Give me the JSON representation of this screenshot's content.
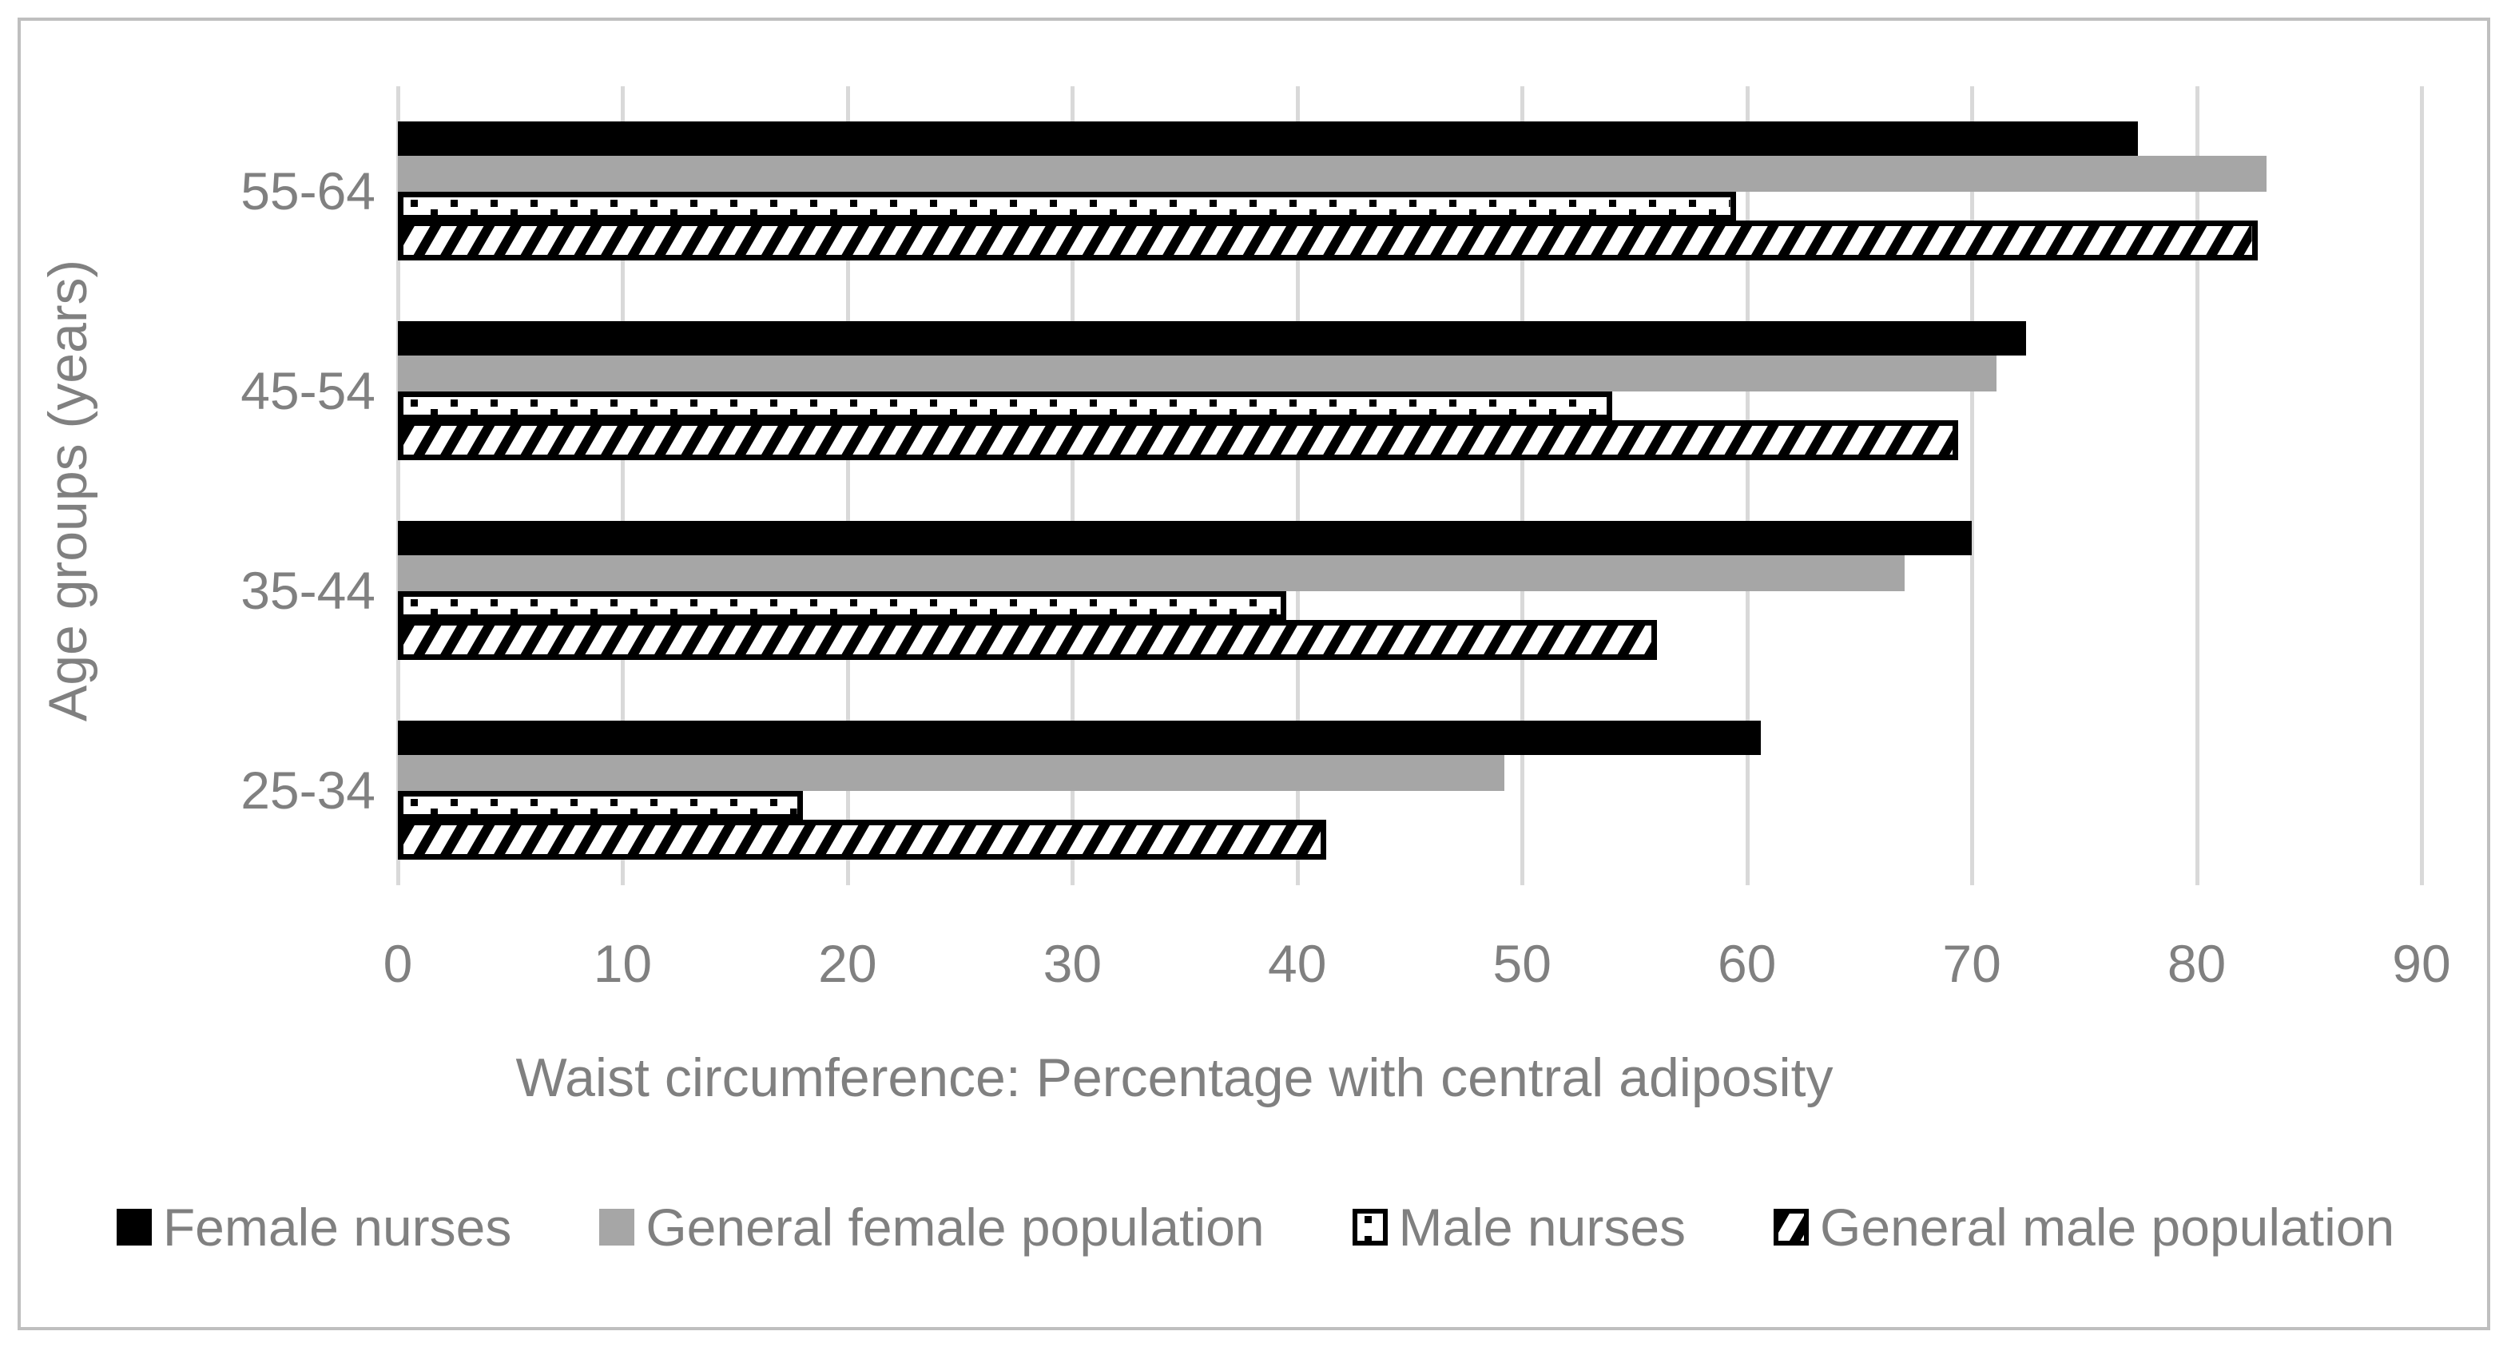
{
  "chart_data": {
    "type": "bar",
    "orientation": "horizontal",
    "title": "",
    "xlabel": "Waist circumference: Percentage with central adiposity",
    "ylabel": "Age groups (years)",
    "categories": [
      "55-64",
      "45-54",
      "35-44",
      "25-34"
    ],
    "series": [
      {
        "name": "Female nurses",
        "style": "solid-black",
        "color": "#000000",
        "values": [
          77.4,
          72.4,
          70.0,
          60.6
        ]
      },
      {
        "name": "General female population",
        "style": "solid-gray",
        "color": "#a6a6a6",
        "values": [
          83.1,
          71.1,
          67.0,
          49.2
        ]
      },
      {
        "name": "Male nurses",
        "style": "dot-pattern",
        "color": "#000000",
        "values": [
          59.5,
          54.0,
          39.5,
          18.0
        ]
      },
      {
        "name": "General male population",
        "style": "hatch-pattern",
        "color": "#000000",
        "values": [
          82.7,
          69.4,
          56.0,
          41.3
        ]
      }
    ],
    "xlim": [
      0,
      90
    ],
    "x_ticks": [
      0,
      10,
      20,
      30,
      40,
      50,
      60,
      70,
      80,
      90
    ],
    "grid": "vertical-major",
    "legend_position": "bottom"
  },
  "colors": {
    "gridline": "#d9d9d9",
    "frame_border": "#bfbfbf",
    "axis_text": "#808080",
    "background": "#ffffff",
    "bar_gray": "#a6a6a6",
    "bar_black": "#000000"
  }
}
